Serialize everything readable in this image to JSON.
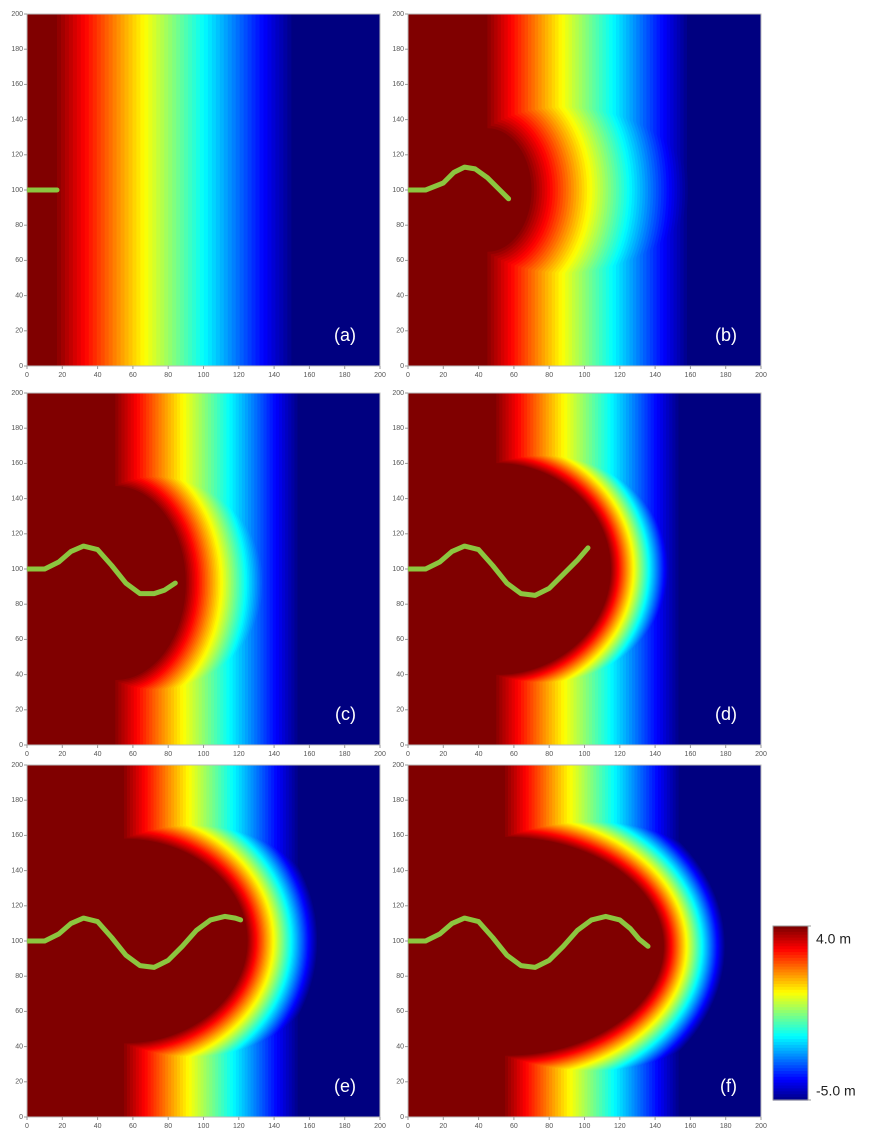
{
  "chart_data": [
    {
      "type": "heatmap",
      "label": "(a)",
      "xlim": [
        0,
        200
      ],
      "ylim": [
        0,
        200
      ],
      "xticks": [
        0,
        20,
        40,
        60,
        80,
        100,
        120,
        140,
        160,
        180,
        200
      ],
      "yticks": [
        0,
        20,
        40,
        60,
        80,
        100,
        120,
        140,
        160,
        180,
        200
      ],
      "series": [
        {
          "color": "#8cc63f",
          "x": [
            0,
            8,
            17
          ],
          "values": [
            100,
            100,
            100
          ]
        }
      ]
    },
    {
      "type": "heatmap",
      "label": "(b)",
      "xlim": [
        0,
        200
      ],
      "ylim": [
        0,
        200
      ],
      "xticks": [
        0,
        20,
        40,
        60,
        80,
        100,
        120,
        140,
        160,
        180,
        200
      ],
      "yticks": [
        0,
        20,
        40,
        60,
        80,
        100,
        120,
        140,
        160,
        180,
        200
      ],
      "series": [
        {
          "color": "#8cc63f",
          "x": [
            0,
            10,
            20,
            26,
            32,
            38,
            45,
            52,
            57
          ],
          "values": [
            100,
            100,
            104,
            110,
            113,
            112,
            107,
            100,
            95
          ]
        }
      ]
    },
    {
      "type": "heatmap",
      "label": "(c)",
      "xlim": [
        0,
        200
      ],
      "ylim": [
        0,
        200
      ],
      "xticks": [
        0,
        20,
        40,
        60,
        80,
        100,
        120,
        140,
        160,
        180,
        200
      ],
      "yticks": [
        0,
        20,
        40,
        60,
        80,
        100,
        120,
        140,
        160,
        180,
        200
      ],
      "series": [
        {
          "color": "#8cc63f",
          "x": [
            0,
            10,
            18,
            25,
            32,
            40,
            48,
            56,
            64,
            72,
            78,
            84
          ],
          "values": [
            100,
            100,
            104,
            110,
            113,
            111,
            102,
            92,
            86,
            86,
            88,
            92
          ]
        }
      ]
    },
    {
      "type": "heatmap",
      "label": "(d)",
      "xlim": [
        0,
        200
      ],
      "ylim": [
        0,
        200
      ],
      "xticks": [
        0,
        20,
        40,
        60,
        80,
        100,
        120,
        140,
        160,
        180,
        200
      ],
      "yticks": [
        0,
        20,
        40,
        60,
        80,
        100,
        120,
        140,
        160,
        180,
        200
      ],
      "series": [
        {
          "color": "#8cc63f",
          "x": [
            0,
            10,
            18,
            25,
            32,
            40,
            48,
            56,
            64,
            72,
            80,
            88,
            96,
            102
          ],
          "values": [
            100,
            100,
            104,
            110,
            113,
            111,
            102,
            92,
            86,
            85,
            89,
            97,
            105,
            112
          ]
        }
      ]
    },
    {
      "type": "heatmap",
      "label": "(e)",
      "xlim": [
        0,
        200
      ],
      "ylim": [
        0,
        200
      ],
      "xticks": [
        0,
        20,
        40,
        60,
        80,
        100,
        120,
        140,
        160,
        180,
        200
      ],
      "yticks": [
        0,
        20,
        40,
        60,
        80,
        100,
        120,
        140,
        160,
        180,
        200
      ],
      "series": [
        {
          "color": "#8cc63f",
          "x": [
            0,
            10,
            18,
            25,
            32,
            40,
            48,
            56,
            64,
            72,
            80,
            88,
            96,
            104,
            112,
            118,
            121
          ],
          "values": [
            100,
            100,
            104,
            110,
            113,
            111,
            102,
            92,
            86,
            85,
            89,
            97,
            106,
            112,
            114,
            113,
            112
          ]
        }
      ]
    },
    {
      "type": "heatmap",
      "label": "(f)",
      "xlim": [
        0,
        200
      ],
      "ylim": [
        0,
        200
      ],
      "xticks": [
        0,
        20,
        40,
        60,
        80,
        100,
        120,
        140,
        160,
        180,
        200
      ],
      "yticks": [
        0,
        20,
        40,
        60,
        80,
        100,
        120,
        140,
        160,
        180,
        200
      ],
      "series": [
        {
          "color": "#8cc63f",
          "x": [
            0,
            10,
            18,
            25,
            32,
            40,
            48,
            56,
            64,
            72,
            80,
            88,
            96,
            104,
            112,
            120,
            126,
            131,
            136
          ],
          "values": [
            100,
            100,
            104,
            110,
            113,
            111,
            102,
            92,
            86,
            85,
            89,
            97,
            106,
            112,
            114,
            112,
            107,
            101,
            97
          ]
        }
      ]
    },
    {
      "type": "colorbar",
      "clim": [
        -5,
        4
      ],
      "cticks": [
        {
          "value": 4,
          "label": "4.0 m"
        },
        {
          "value": -5,
          "label": "-5.0 m"
        }
      ]
    }
  ]
}
